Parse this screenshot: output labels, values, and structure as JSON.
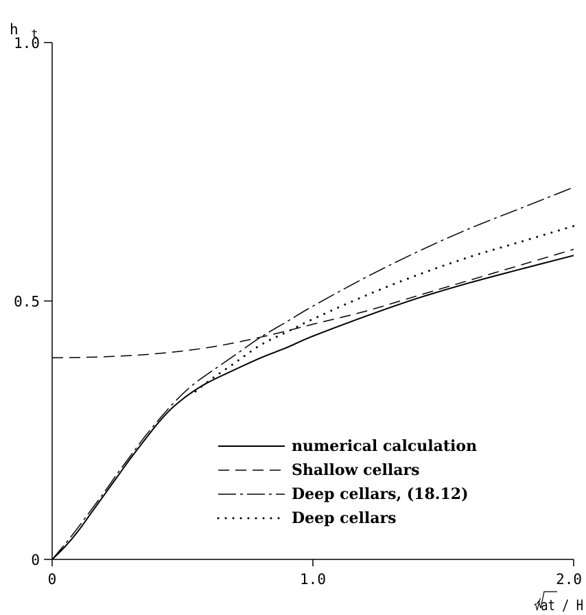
{
  "chart_data": {
    "type": "line",
    "ylabel": "h",
    "ylabel_sub": "t",
    "xlabel": "√at / H",
    "xlim": [
      0,
      2.0
    ],
    "ylim": [
      0,
      1.0
    ],
    "x_ticks": [
      {
        "value": 0,
        "label": "0"
      },
      {
        "value": 1.0,
        "label": "1.0"
      },
      {
        "value": 2.0,
        "label": "2.0"
      }
    ],
    "y_ticks": [
      {
        "value": 0,
        "label": "0"
      },
      {
        "value": 0.5,
        "label": "0.5"
      },
      {
        "value": 1.0,
        "label": "1.0"
      }
    ],
    "grid": false,
    "legend_position": "lower-right",
    "series": [
      {
        "name": "numerical calculation",
        "style": "solid",
        "points": [
          [
            0,
            0
          ],
          [
            0.05,
            0.025
          ],
          [
            0.1,
            0.055
          ],
          [
            0.15,
            0.09
          ],
          [
            0.2,
            0.125
          ],
          [
            0.25,
            0.16
          ],
          [
            0.3,
            0.195
          ],
          [
            0.35,
            0.228
          ],
          [
            0.4,
            0.26
          ],
          [
            0.45,
            0.288
          ],
          [
            0.5,
            0.31
          ],
          [
            0.55,
            0.328
          ],
          [
            0.6,
            0.343
          ],
          [
            0.7,
            0.367
          ],
          [
            0.8,
            0.39
          ],
          [
            0.9,
            0.41
          ],
          [
            1.0,
            0.432
          ],
          [
            1.2,
            0.47
          ],
          [
            1.4,
            0.505
          ],
          [
            1.6,
            0.535
          ],
          [
            1.8,
            0.562
          ],
          [
            2.0,
            0.588
          ]
        ]
      },
      {
        "name": "Shallow cellars",
        "style": "dashed",
        "points": [
          [
            0,
            0.39
          ],
          [
            0.2,
            0.392
          ],
          [
            0.4,
            0.398
          ],
          [
            0.6,
            0.41
          ],
          [
            0.8,
            0.43
          ],
          [
            1.0,
            0.455
          ],
          [
            1.2,
            0.48
          ],
          [
            1.4,
            0.51
          ],
          [
            1.6,
            0.54
          ],
          [
            1.8,
            0.57
          ],
          [
            2.0,
            0.6
          ]
        ]
      },
      {
        "name": "Deep cellars, (18.12)",
        "style": "dashdot",
        "points": [
          [
            0,
            0
          ],
          [
            0.05,
            0.03
          ],
          [
            0.1,
            0.062
          ],
          [
            0.15,
            0.096
          ],
          [
            0.2,
            0.13
          ],
          [
            0.25,
            0.166
          ],
          [
            0.3,
            0.2
          ],
          [
            0.35,
            0.234
          ],
          [
            0.4,
            0.265
          ],
          [
            0.45,
            0.294
          ],
          [
            0.5,
            0.32
          ],
          [
            0.55,
            0.342
          ],
          [
            0.6,
            0.36
          ],
          [
            0.7,
            0.395
          ],
          [
            0.8,
            0.43
          ],
          [
            0.9,
            0.46
          ],
          [
            1.0,
            0.49
          ],
          [
            1.2,
            0.545
          ],
          [
            1.4,
            0.595
          ],
          [
            1.6,
            0.64
          ],
          [
            1.8,
            0.68
          ],
          [
            2.0,
            0.72
          ]
        ]
      },
      {
        "name": "Deep cellars",
        "style": "dotted",
        "points": [
          [
            0.55,
            0.325
          ],
          [
            0.6,
            0.345
          ],
          [
            0.7,
            0.38
          ],
          [
            0.8,
            0.415
          ],
          [
            0.9,
            0.44
          ],
          [
            1.0,
            0.465
          ],
          [
            1.2,
            0.51
          ],
          [
            1.4,
            0.55
          ],
          [
            1.6,
            0.585
          ],
          [
            1.8,
            0.615
          ],
          [
            2.0,
            0.645
          ]
        ]
      }
    ]
  }
}
